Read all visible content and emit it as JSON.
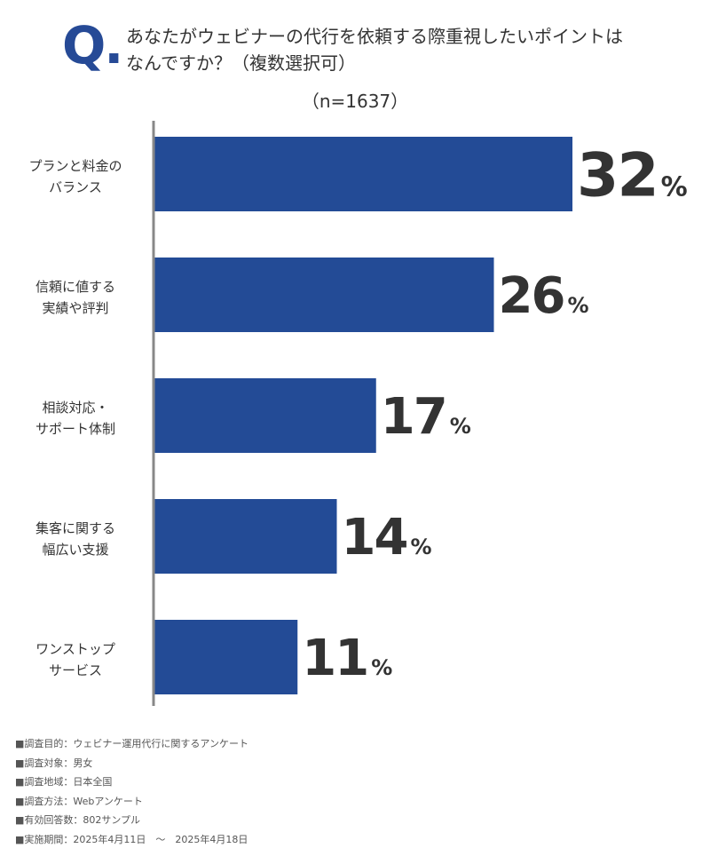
{
  "header": {
    "q_mark": "Q.",
    "question_line1": "あなたがウェビナーの代行を依頼する際重視したいポイントは",
    "question_line2": "なんですか？（複数選択可）",
    "sample_size": "（n=1637）"
  },
  "chart_data": {
    "type": "bar",
    "orientation": "horizontal",
    "categories": [
      [
        "プランと料金の",
        "バランス"
      ],
      [
        "信頼に値する",
        "実績や評判"
      ],
      [
        "相談対応・",
        "サポート体制"
      ],
      [
        "集客に関する",
        "幅広い支援"
      ],
      [
        "ワンストップ",
        "サービス"
      ]
    ],
    "values": [
      32,
      26,
      17,
      14,
      11
    ],
    "value_suffix": "%",
    "title": "",
    "xlabel": "",
    "ylabel": "",
    "grid": false,
    "bar_color": "#234b96",
    "axis_color": "#888888"
  },
  "footnotes": [
    "■調査目的：ウェビナー運用代行に関するアンケート",
    "■調査対象：男女",
    "■調査地域：日本全国",
    "■調査方法：Webアンケート",
    "■有効回答数：802サンプル",
    "■実施期間：2025年4月11日　～　2025年4月18日"
  ]
}
